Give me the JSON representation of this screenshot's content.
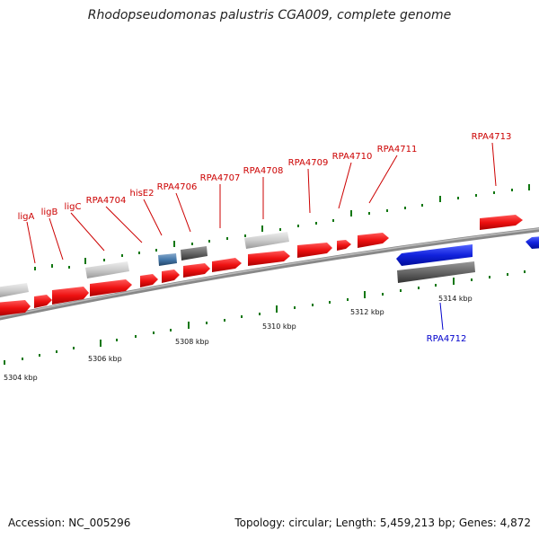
{
  "title": "Rhodopseudomonas palustris CGA009, complete genome",
  "footer": {
    "accession": "Accession: NC_005296",
    "summary": "Topology: circular; Length: 5,459,213 bp; Genes: 4,872"
  },
  "colors": {
    "forward_gene": "#ee1111",
    "reverse_gene": "#1122dd",
    "rna_gene": "#c8c8c8",
    "pseudogene": "#666666",
    "other_gene": "#4477aa",
    "tick": "#117711",
    "backbone": "#888888",
    "label_forward": "#cc0000",
    "label_reverse": "#0000cc"
  },
  "scale_labels": [
    {
      "text": "5304 kbp"
    },
    {
      "text": "5306 kbp"
    },
    {
      "text": "5308 kbp"
    },
    {
      "text": "5310 kbp"
    },
    {
      "text": "5312 kbp"
    },
    {
      "text": "5314 kbp"
    }
  ],
  "gene_labels": [
    {
      "text": "ligA",
      "strand": "forward"
    },
    {
      "text": "ligB",
      "strand": "forward"
    },
    {
      "text": "ligC",
      "strand": "forward"
    },
    {
      "text": "RPA4704",
      "strand": "forward"
    },
    {
      "text": "hisE2",
      "strand": "forward"
    },
    {
      "text": "RPA4706",
      "strand": "forward"
    },
    {
      "text": "RPA4707",
      "strand": "forward"
    },
    {
      "text": "RPA4708",
      "strand": "forward"
    },
    {
      "text": "RPA4709",
      "strand": "forward"
    },
    {
      "text": "RPA4710",
      "strand": "forward"
    },
    {
      "text": "RPA4711",
      "strand": "forward"
    },
    {
      "text": "RPA4713",
      "strand": "forward"
    },
    {
      "text": "RPA4712",
      "strand": "reverse"
    }
  ]
}
